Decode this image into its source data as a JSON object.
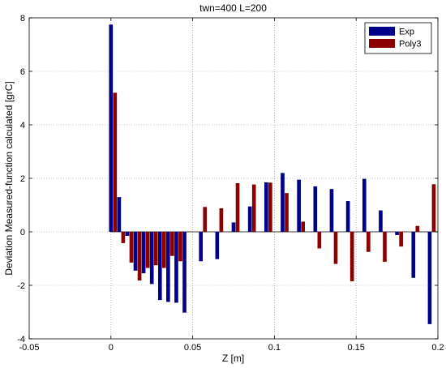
{
  "chart_data": {
    "type": "bar",
    "title": "twn=400 L=200",
    "xlabel": "Z [m]",
    "ylabel": "Deviation Measured-function calculated [grC]",
    "xlim": [
      -0.05,
      0.2
    ],
    "ylim": [
      -4,
      8
    ],
    "xticks": [
      -0.05,
      0,
      0.05,
      0.1,
      0.15,
      0.2
    ],
    "xtick_labels": [
      "-0.05",
      "0",
      "0.05",
      "0.1",
      "0.15",
      "0.2"
    ],
    "yticks": [
      -4,
      -2,
      0,
      2,
      4,
      6,
      8
    ],
    "ytick_labels": [
      "-4",
      "-2",
      "0",
      "2",
      "4",
      "6",
      "8"
    ],
    "grid": true,
    "legend_position": "top-right",
    "series": [
      {
        "name": "Exp",
        "color": "#00008B",
        "x": [
          0,
          0.005,
          0.01,
          0.015,
          0.02,
          0.025,
          0.03,
          0.035,
          0.04,
          0.045,
          0.055,
          0.065,
          0.075,
          0.085,
          0.095,
          0.105,
          0.115,
          0.125,
          0.135,
          0.145,
          0.155,
          0.165,
          0.175,
          0.185,
          0.195
        ],
        "values": [
          7.75,
          1.3,
          -0.15,
          -1.45,
          -1.55,
          -1.95,
          -2.55,
          -2.62,
          -2.65,
          -3.02,
          -1.1,
          -1.02,
          0.35,
          0.95,
          1.85,
          2.2,
          1.95,
          1.7,
          1.6,
          1.15,
          1.98,
          0.8,
          -0.12,
          -1.72,
          -3.45
        ]
      },
      {
        "name": "Poly3",
        "color": "#8B0000",
        "x": [
          0.0025,
          0.0075,
          0.0125,
          0.0175,
          0.0225,
          0.0275,
          0.0325,
          0.0375,
          0.0425,
          0.0475,
          0.0575,
          0.0675,
          0.0775,
          0.0875,
          0.0975,
          0.1075,
          0.1175,
          0.1275,
          0.1375,
          0.1475,
          0.1575,
          0.1675,
          0.1775,
          0.1875,
          0.1975
        ],
        "values": [
          5.2,
          -0.42,
          -1.15,
          -1.82,
          -1.35,
          -1.25,
          -1.35,
          -0.9,
          -1.1,
          0,
          0.93,
          0.88,
          1.82,
          1.77,
          1.84,
          1.45,
          0.38,
          -0.62,
          -1.2,
          -1.85,
          -0.75,
          -1.12,
          -0.55,
          0.22,
          1.78
        ]
      }
    ]
  }
}
